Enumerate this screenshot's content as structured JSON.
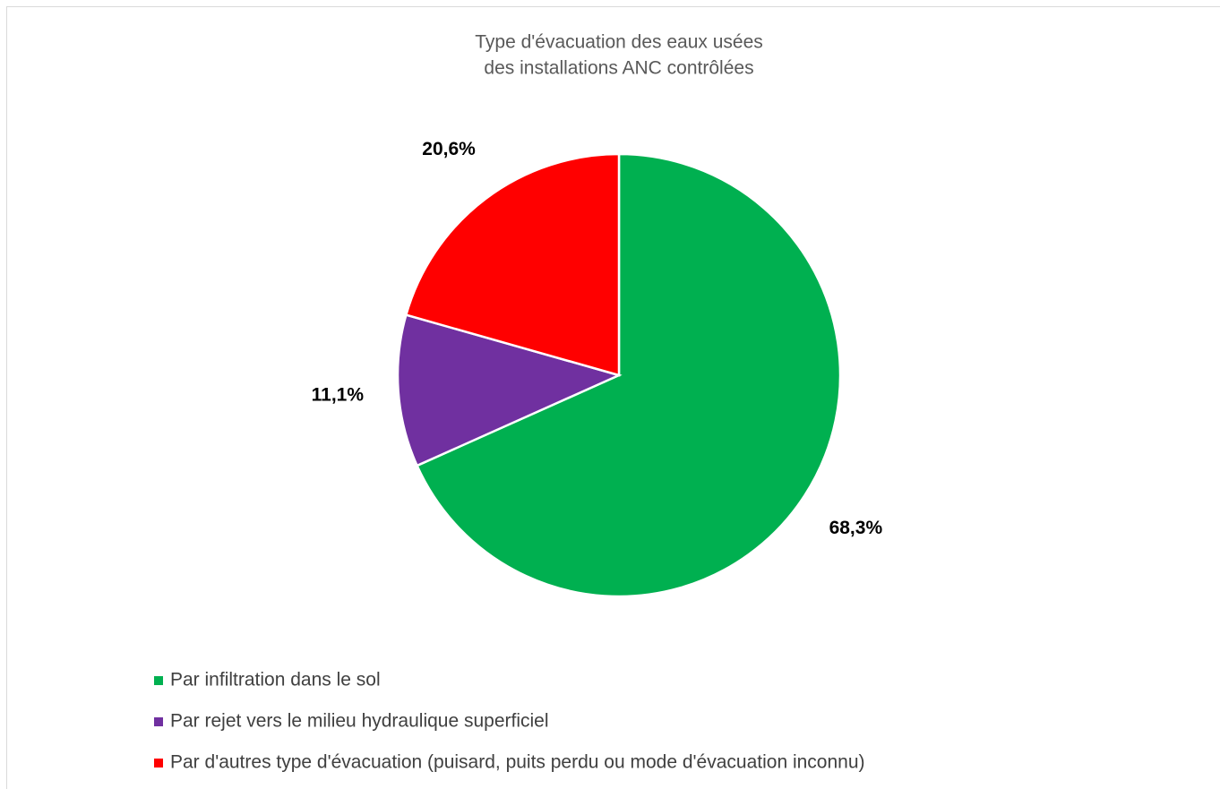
{
  "chart_data": {
    "type": "pie",
    "title": [
      "Type d'évacuation des eaux usées",
      "des installations ANC contrôlées"
    ],
    "categories": [
      "Par infiltration dans le sol",
      "Par rejet vers le milieu hydraulique superficiel",
      "Par d'autres type d'évacuation (puisard, puits perdu ou mode d'évacuation inconnu)"
    ],
    "values": [
      68.3,
      11.1,
      20.6
    ],
    "value_labels": [
      "68,3%",
      "11,1%",
      "20,6%"
    ],
    "colors": [
      "#00b050",
      "#7030a0",
      "#ff0000"
    ]
  }
}
